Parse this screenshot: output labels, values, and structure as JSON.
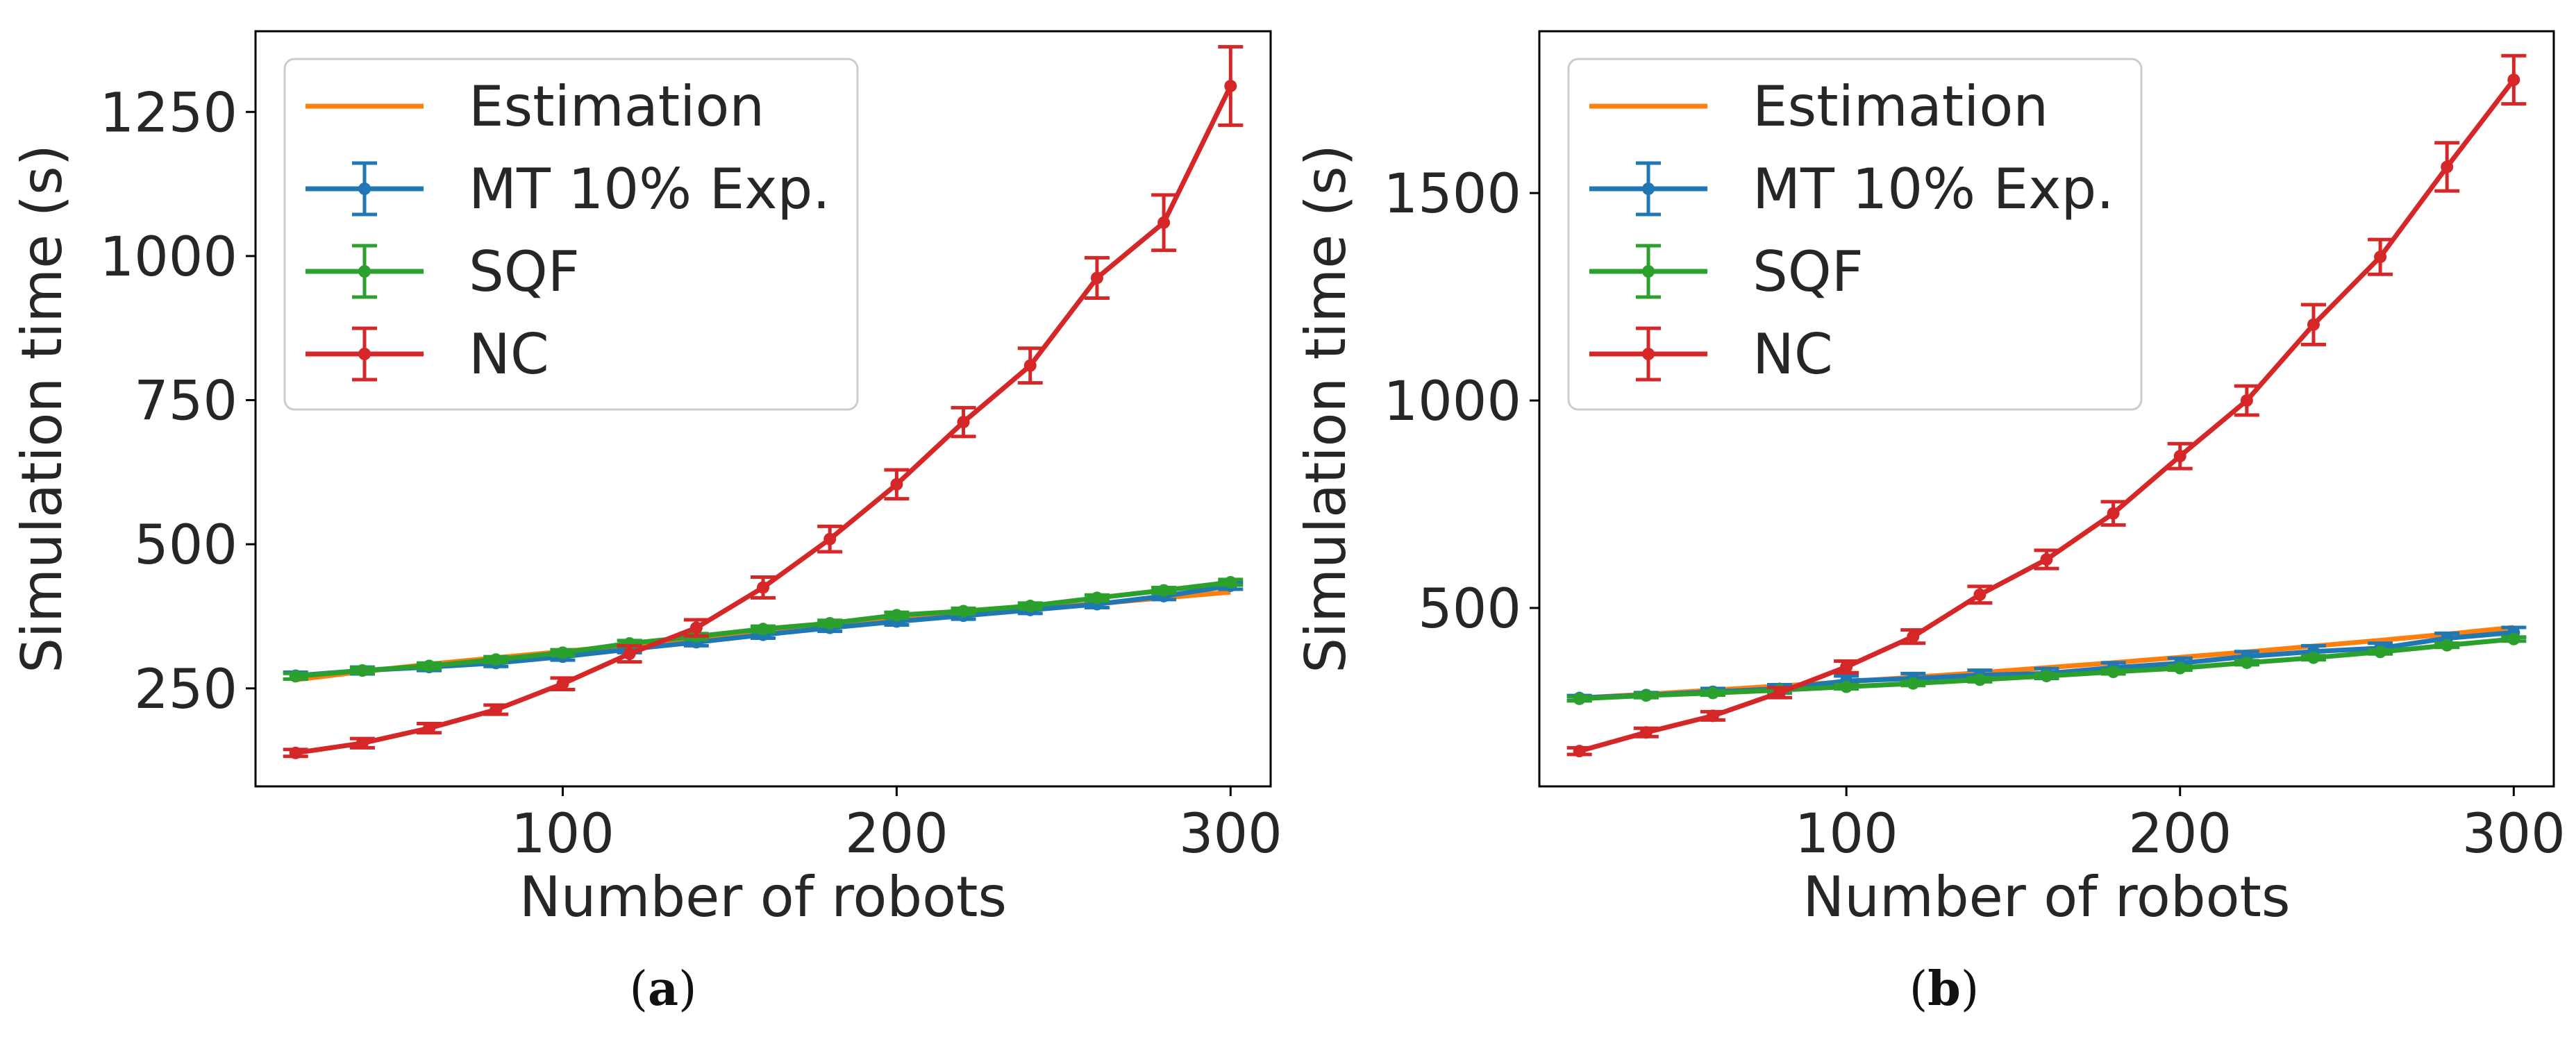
{
  "chart_data": [
    {
      "type": "line",
      "caption": "(a)",
      "caption_paren_open": "(",
      "caption_letter": "a",
      "caption_paren_close": ")",
      "xlabel": "Number of robots",
      "ylabel": "Simulation time (s)",
      "xlim": [
        8,
        312
      ],
      "ylim": [
        80,
        1390
      ],
      "xticks": [
        100,
        200,
        300
      ],
      "yticks": [
        250,
        500,
        750,
        1000,
        1250
      ],
      "legend_position": "upper-left",
      "x": [
        20,
        40,
        60,
        80,
        100,
        120,
        140,
        160,
        180,
        200,
        220,
        240,
        260,
        280,
        300
      ],
      "series": [
        {
          "name": "Estimation",
          "color": "#ff7f0e",
          "marker": "none",
          "errorbars": false,
          "values": [
            265,
            279,
            292,
            303,
            314,
            325,
            336,
            347,
            358,
            368,
            378,
            388,
            397,
            407,
            417
          ]
        },
        {
          "name": "MT 10% Exp.",
          "color": "#1f77b4",
          "marker": "dot",
          "errorbars": true,
          "values": [
            272,
            281,
            287,
            294,
            305,
            318,
            330,
            343,
            355,
            366,
            376,
            386,
            396,
            410,
            428
          ],
          "errors": [
            6,
            6,
            6,
            6,
            6,
            6,
            6,
            6,
            6,
            6,
            6,
            6,
            6,
            6,
            6
          ]
        },
        {
          "name": "SQF",
          "color": "#2ca02c",
          "marker": "dot",
          "errorbars": true,
          "values": [
            271,
            281,
            289,
            300,
            312,
            328,
            340,
            353,
            363,
            377,
            384,
            393,
            407,
            420,
            434
          ],
          "errors": [
            5,
            5,
            5,
            5,
            5,
            5,
            5,
            5,
            5,
            5,
            5,
            5,
            5,
            5,
            5
          ]
        },
        {
          "name": "NC",
          "color": "#d62728",
          "marker": "dot",
          "errorbars": true,
          "values": [
            138,
            155,
            181,
            213,
            258,
            310,
            355,
            425,
            509,
            604,
            712,
            810,
            962,
            1058,
            1295
          ],
          "errors": [
            6,
            8,
            8,
            8,
            10,
            14,
            14,
            18,
            22,
            25,
            25,
            30,
            35,
            48,
            68
          ]
        }
      ]
    },
    {
      "type": "line",
      "caption": "(b)",
      "caption_paren_open": "(",
      "caption_letter": "b",
      "caption_paren_close": ")",
      "xlabel": "Number of robots",
      "ylabel": "Simulation time (s)",
      "xlim": [
        8,
        312
      ],
      "ylim": [
        70,
        1890
      ],
      "xticks": [
        100,
        200,
        300
      ],
      "yticks": [
        500,
        1000,
        1500
      ],
      "legend_position": "upper-left",
      "x": [
        20,
        40,
        60,
        80,
        100,
        120,
        140,
        160,
        180,
        200,
        220,
        240,
        260,
        280,
        300
      ],
      "series": [
        {
          "name": "Estimation",
          "color": "#ff7f0e",
          "marker": "none",
          "errorbars": false,
          "values": [
            283,
            292,
            302,
            312,
            322,
            333,
            344,
            356,
            368,
            381,
            394,
            408,
            422,
            437,
            453
          ]
        },
        {
          "name": "MT 10% Exp.",
          "color": "#1f77b4",
          "marker": "dot",
          "errorbars": true,
          "values": [
            283,
            290,
            298,
            305,
            324,
            330,
            338,
            342,
            356,
            367,
            383,
            395,
            403,
            427,
            441
          ],
          "errors": [
            6,
            6,
            8,
            10,
            12,
            12,
            12,
            12,
            12,
            12,
            12,
            14,
            12,
            12,
            12
          ]
        },
        {
          "name": "SQF",
          "color": "#2ca02c",
          "marker": "dot",
          "errorbars": true,
          "values": [
            281,
            289,
            295,
            302,
            310,
            318,
            327,
            336,
            346,
            355,
            368,
            380,
            394,
            410,
            425
          ],
          "errors": [
            5,
            5,
            5,
            5,
            5,
            5,
            5,
            5,
            5,
            5,
            5,
            5,
            5,
            5,
            5
          ]
        },
        {
          "name": "NC",
          "color": "#d62728",
          "marker": "dot",
          "errorbars": true,
          "values": [
            155,
            200,
            240,
            296,
            358,
            431,
            532,
            617,
            728,
            866,
            1000,
            1183,
            1346,
            1563,
            1773
          ],
          "errors": [
            8,
            10,
            10,
            12,
            14,
            16,
            20,
            22,
            28,
            30,
            35,
            48,
            42,
            58,
            58
          ]
        }
      ]
    }
  ]
}
